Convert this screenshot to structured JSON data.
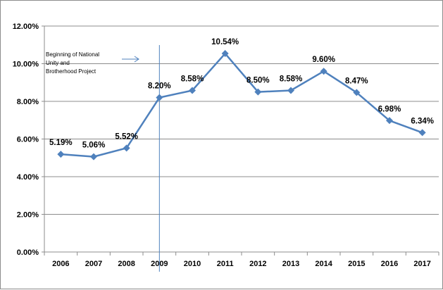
{
  "chart_data": {
    "type": "line",
    "title": "",
    "xlabel": "",
    "ylabel": "",
    "categories": [
      "2006",
      "2007",
      "2008",
      "2009",
      "2010",
      "2011",
      "2012",
      "2013",
      "2014",
      "2015",
      "2016",
      "2017"
    ],
    "series": [
      {
        "values": [
          5.19,
          5.06,
          5.52,
          8.2,
          8.58,
          10.54,
          8.5,
          8.58,
          9.6,
          8.47,
          6.98,
          6.34
        ],
        "data_labels": [
          "5.19%",
          "5.06%",
          "5.52%",
          "8.20%",
          "8.58%",
          "10.54%",
          "8.50%",
          "8.58%",
          "9.60%",
          "8.47%",
          "6.98%",
          "6.34%"
        ],
        "color": "#4f81bd",
        "marker": "diamond"
      }
    ],
    "ylim": [
      0,
      12
    ],
    "y_ticks": [
      0,
      2,
      4,
      6,
      8,
      10,
      12
    ],
    "y_tick_labels": [
      "0.00%",
      "2.00%",
      "4.00%",
      "6.00%",
      "8.00%",
      "10.00%",
      "12.00%"
    ],
    "grid": "horizontal",
    "legend": "none",
    "annotation": {
      "lines": [
        "Beginning of National",
        "Unity and",
        "Brotherhood Project"
      ],
      "at_category": "2009"
    }
  }
}
